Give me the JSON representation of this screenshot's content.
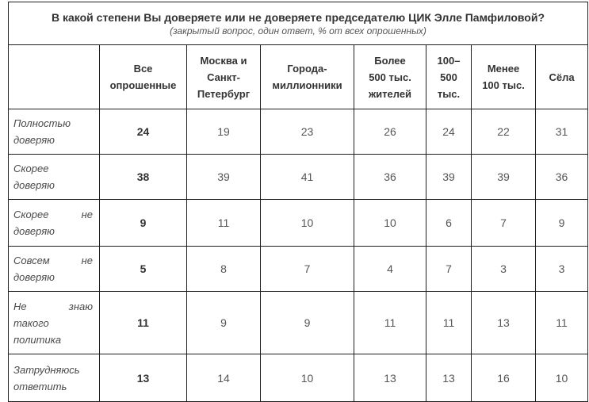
{
  "title": "В какой степени Вы доверяете или не доверяете председателю ЦИК Элле Памфиловой?",
  "subtitle": "(закрытый вопрос, один ответ, % от всех опрошенных)",
  "columns": [
    {
      "lines": [
        "Все",
        "опрошенные"
      ]
    },
    {
      "lines": [
        "Москва и",
        "Санкт-",
        "Петербург"
      ]
    },
    {
      "lines": [
        "Города-",
        "миллионники"
      ]
    },
    {
      "lines": [
        "Более",
        "500 тыс.",
        "жителей"
      ]
    },
    {
      "lines": [
        "100–",
        "500",
        "тыс."
      ]
    },
    {
      "lines": [
        "Менее",
        "100 тыс."
      ]
    },
    {
      "lines": [
        "Сёла"
      ]
    }
  ],
  "rows": [
    {
      "label": [
        "Полностью",
        "доверяю"
      ],
      "values": [
        "24",
        "19",
        "23",
        "26",
        "24",
        "22",
        "31"
      ]
    },
    {
      "label": [
        "Скорее",
        "доверяю"
      ],
      "values": [
        "38",
        "39",
        "41",
        "36",
        "39",
        "39",
        "36"
      ]
    },
    {
      "label": [
        "Скорее не",
        "доверяю"
      ],
      "values": [
        "9",
        "11",
        "10",
        "10",
        "6",
        "7",
        "9"
      ]
    },
    {
      "label": [
        "Совсем не",
        "доверяю"
      ],
      "values": [
        "5",
        "8",
        "7",
        "4",
        "7",
        "3",
        "3"
      ]
    },
    {
      "label": [
        "Не знаю",
        "такого",
        "политика"
      ],
      "values": [
        "11",
        "9",
        "9",
        "11",
        "11",
        "13",
        "11"
      ]
    },
    {
      "label": [
        "Затрудняюсь",
        "ответить"
      ],
      "values": [
        "13",
        "14",
        "10",
        "13",
        "13",
        "16",
        "10"
      ]
    }
  ]
}
